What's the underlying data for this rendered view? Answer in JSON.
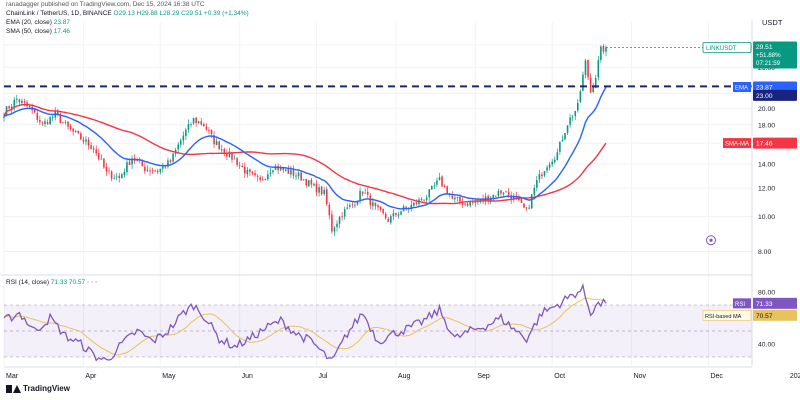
{
  "header": {
    "published": "ranadagger published on TradingView.com, Dec 15, 2024 16:38 UTC",
    "symbol": "ChainLink / TetherUS, 1D, BINANCE",
    "ohlc": "O29.13 H29.88 L28.29 C29.51 +0.39 (+1.34%)",
    "ema": "EMA (20, close)",
    "ema_value": "23.87",
    "sma": "SMA (50, close)",
    "sma_value": "17.46",
    "rsi": "RSI (14, close)",
    "rsi_values": "71.33 70.57"
  },
  "footer": {
    "brand": "TradingView"
  },
  "colors": {
    "up": "#089981",
    "down": "#f23645",
    "ema": "#2962ff",
    "sma": "#f23645",
    "rsi": "#7e57c2",
    "rsi_ma": "#e8c35c",
    "level": "#1a237e"
  },
  "chart_data": [
    {
      "type": "candlestick",
      "title": "ChainLink / TetherUS, 1D, BINANCE",
      "currency": "USDT",
      "x_labels": [
        "Mar",
        "Apr",
        "May",
        "Jun",
        "Jul",
        "Aug",
        "Sep",
        "Oct",
        "Nov",
        "Dec",
        "202"
      ],
      "y_ticks": [
        8.0,
        10.0,
        12.0,
        14.0,
        16.0,
        18.0,
        20.0,
        22.0,
        26.0,
        30.0
      ],
      "y_scale": "log",
      "ylim": [
        7.2,
        33
      ],
      "horizontal_level": 23.0,
      "last_price": {
        "label": "LINKUSDT",
        "value": "29.51",
        "change": "+51.88%",
        "countdown": "07:21:59"
      },
      "ema": {
        "name": "EMA",
        "value": "23.87"
      },
      "sma": {
        "name": "SMA-MA",
        "value": "17.46"
      },
      "close_anchors": [
        {
          "day": 0,
          "close": 19.5
        },
        {
          "day": 5,
          "close": 21.2
        },
        {
          "day": 10,
          "close": 20.0
        },
        {
          "day": 15,
          "close": 18.0
        },
        {
          "day": 20,
          "close": 19.2
        },
        {
          "day": 25,
          "close": 17.6
        },
        {
          "day": 30,
          "close": 16.5
        },
        {
          "day": 35,
          "close": 15.5
        },
        {
          "day": 40,
          "close": 13.2
        },
        {
          "day": 45,
          "close": 12.8
        },
        {
          "day": 50,
          "close": 14.6
        },
        {
          "day": 55,
          "close": 13.6
        },
        {
          "day": 60,
          "close": 13.4
        },
        {
          "day": 65,
          "close": 14.2
        },
        {
          "day": 70,
          "close": 16.8
        },
        {
          "day": 74,
          "close": 18.6
        },
        {
          "day": 78,
          "close": 18.0
        },
        {
          "day": 82,
          "close": 16.2
        },
        {
          "day": 86,
          "close": 15.2
        },
        {
          "day": 90,
          "close": 14.4
        },
        {
          "day": 95,
          "close": 13.2
        },
        {
          "day": 100,
          "close": 12.5
        },
        {
          "day": 105,
          "close": 13.8
        },
        {
          "day": 110,
          "close": 13.4
        },
        {
          "day": 115,
          "close": 13.0
        },
        {
          "day": 120,
          "close": 12.2
        },
        {
          "day": 125,
          "close": 11.6
        },
        {
          "day": 128,
          "close": 9.2
        },
        {
          "day": 132,
          "close": 10.2
        },
        {
          "day": 136,
          "close": 10.8
        },
        {
          "day": 140,
          "close": 11.8
        },
        {
          "day": 145,
          "close": 10.5
        },
        {
          "day": 150,
          "close": 9.8
        },
        {
          "day": 155,
          "close": 10.4
        },
        {
          "day": 160,
          "close": 10.8
        },
        {
          "day": 165,
          "close": 11.4
        },
        {
          "day": 170,
          "close": 12.6
        },
        {
          "day": 175,
          "close": 11.2
        },
        {
          "day": 180,
          "close": 10.9
        },
        {
          "day": 185,
          "close": 11.0
        },
        {
          "day": 190,
          "close": 11.4
        },
        {
          "day": 195,
          "close": 11.8
        },
        {
          "day": 200,
          "close": 11.1
        },
        {
          "day": 204,
          "close": 10.3
        },
        {
          "day": 208,
          "close": 12.5
        },
        {
          "day": 212,
          "close": 14.0
        },
        {
          "day": 216,
          "close": 15.0
        },
        {
          "day": 220,
          "close": 18.2
        },
        {
          "day": 224,
          "close": 20.2
        },
        {
          "day": 227,
          "close": 26.8
        },
        {
          "day": 229,
          "close": 22.2
        },
        {
          "day": 231,
          "close": 24.6
        },
        {
          "day": 233,
          "close": 29.0
        },
        {
          "day": 235,
          "close": 29.51
        }
      ],
      "rsi_panel": {
        "name": "RSI (14, close)",
        "value": "71.33",
        "ma_name": "RSI-based MA",
        "ma_value": "70.57",
        "y_ticks": [
          40.0,
          60.0,
          80.0
        ],
        "ylim": [
          23,
          87
        ],
        "band": [
          30,
          70
        ],
        "anchors": [
          {
            "day": 0,
            "value": 58
          },
          {
            "day": 6,
            "value": 64
          },
          {
            "day": 12,
            "value": 50
          },
          {
            "day": 18,
            "value": 60
          },
          {
            "day": 24,
            "value": 46
          },
          {
            "day": 30,
            "value": 40
          },
          {
            "day": 36,
            "value": 30
          },
          {
            "day": 40,
            "value": 27
          },
          {
            "day": 46,
            "value": 40
          },
          {
            "day": 52,
            "value": 50
          },
          {
            "day": 58,
            "value": 42
          },
          {
            "day": 64,
            "value": 50
          },
          {
            "day": 70,
            "value": 64
          },
          {
            "day": 74,
            "value": 70
          },
          {
            "day": 78,
            "value": 62
          },
          {
            "day": 84,
            "value": 44
          },
          {
            "day": 90,
            "value": 38
          },
          {
            "day": 96,
            "value": 44
          },
          {
            "day": 102,
            "value": 52
          },
          {
            "day": 108,
            "value": 58
          },
          {
            "day": 114,
            "value": 48
          },
          {
            "day": 120,
            "value": 42
          },
          {
            "day": 126,
            "value": 30
          },
          {
            "day": 128,
            "value": 26
          },
          {
            "day": 134,
            "value": 48
          },
          {
            "day": 140,
            "value": 64
          },
          {
            "day": 146,
            "value": 42
          },
          {
            "day": 152,
            "value": 48
          },
          {
            "day": 158,
            "value": 52
          },
          {
            "day": 164,
            "value": 58
          },
          {
            "day": 170,
            "value": 66
          },
          {
            "day": 176,
            "value": 44
          },
          {
            "day": 182,
            "value": 50
          },
          {
            "day": 188,
            "value": 54
          },
          {
            "day": 194,
            "value": 60
          },
          {
            "day": 200,
            "value": 50
          },
          {
            "day": 204,
            "value": 44
          },
          {
            "day": 210,
            "value": 64
          },
          {
            "day": 216,
            "value": 70
          },
          {
            "day": 222,
            "value": 78
          },
          {
            "day": 226,
            "value": 82
          },
          {
            "day": 229,
            "value": 64
          },
          {
            "day": 231,
            "value": 70
          },
          {
            "day": 235,
            "value": 71.33
          }
        ]
      }
    }
  ]
}
